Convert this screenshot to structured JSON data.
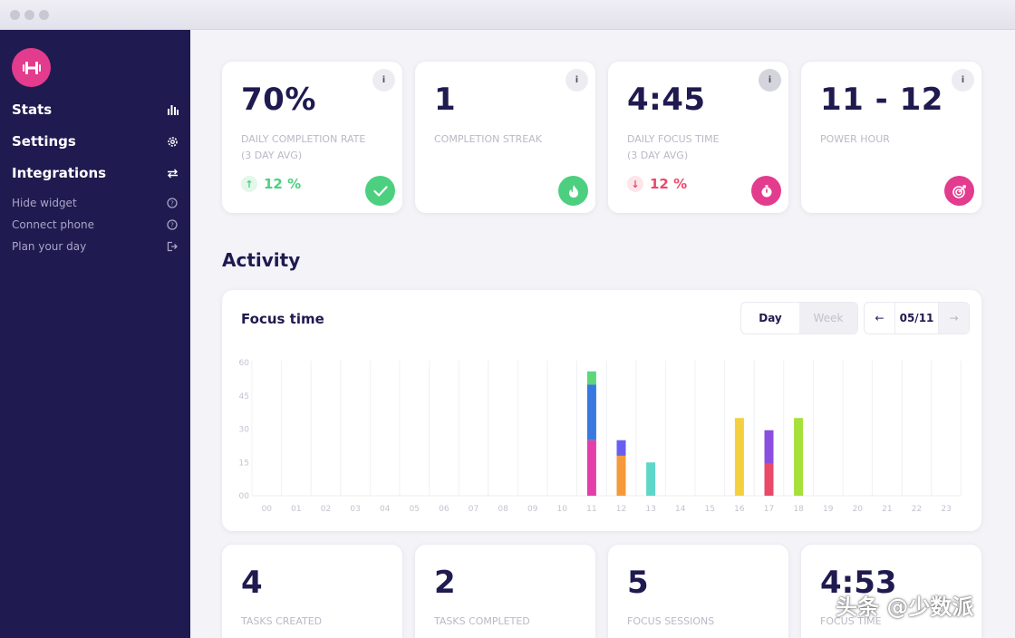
{
  "sidebar": {
    "logo_icon": "dumbbell-icon",
    "main_items": [
      {
        "label": "Stats",
        "icon": "bar-chart-icon"
      },
      {
        "label": "Settings",
        "icon": "gear-icon"
      },
      {
        "label": "Integrations",
        "icon": "sync-arrows-icon"
      }
    ],
    "sub_items": [
      {
        "label": "Hide widget",
        "icon": "help-circle-icon"
      },
      {
        "label": "Connect phone",
        "icon": "help-circle-icon"
      },
      {
        "label": "Plan your day",
        "icon": "exit-icon"
      }
    ]
  },
  "stats": [
    {
      "value": "70%",
      "label": "DAILY COMPLETION RATE\n(3 DAY AVG)",
      "delta": "12 %",
      "delta_direction": "up",
      "badge_icon": "check-icon",
      "badge_color": "#4cd080"
    },
    {
      "value": "1",
      "label": "COMPLETION STREAK",
      "badge_icon": "flame-icon",
      "badge_color": "#4cd080"
    },
    {
      "value": "4:45",
      "label": "DAILY FOCUS TIME\n(3 DAY AVG)",
      "delta": "12 %",
      "delta_direction": "down",
      "badge_icon": "stopwatch-icon",
      "badge_color": "#e33b8d"
    },
    {
      "value": "11 - 12",
      "label": "POWER HOUR",
      "badge_icon": "target-icon",
      "badge_color": "#e33b8d"
    }
  ],
  "activity": {
    "title": "Activity",
    "chart_card": {
      "title": "Focus time",
      "tabs": [
        "Day",
        "Week"
      ],
      "active_tab": "Day",
      "date": "05/11",
      "prev_icon": "arrow-left-icon",
      "next_icon": "arrow-right-icon"
    }
  },
  "chart_data": {
    "type": "bar",
    "stacked": true,
    "title": "Focus time",
    "xlabel": "",
    "ylabel": "",
    "categories": [
      "00",
      "01",
      "02",
      "03",
      "04",
      "05",
      "06",
      "07",
      "08",
      "09",
      "10",
      "11",
      "12",
      "13",
      "14",
      "15",
      "16",
      "17",
      "18",
      "19",
      "20",
      "21",
      "22",
      "23"
    ],
    "y_ticks": [
      "60",
      "45",
      "30",
      "15",
      "00"
    ],
    "ylim": [
      0,
      60
    ],
    "grid": true,
    "bars": [
      {
        "hour": "11",
        "segments": [
          {
            "value": 25,
            "color": "#e53ea9"
          },
          {
            "value": 25,
            "color": "#3a78e0"
          },
          {
            "value": 6,
            "color": "#5ed67b"
          }
        ]
      },
      {
        "hour": "12",
        "segments": [
          {
            "value": 18,
            "color": "#f59a3a"
          },
          {
            "value": 7,
            "color": "#6a5ef0"
          }
        ]
      },
      {
        "hour": "13",
        "segments": [
          {
            "value": 15,
            "color": "#5ed6c9"
          }
        ]
      },
      {
        "hour": "16",
        "segments": [
          {
            "value": 35,
            "color": "#f5d03e"
          }
        ]
      },
      {
        "hour": "17",
        "segments": [
          {
            "value": 14.5,
            "color": "#e94a6a"
          },
          {
            "value": 15,
            "color": "#8b4fe0"
          }
        ]
      },
      {
        "hour": "18",
        "segments": [
          {
            "value": 35,
            "color": "#a6e03a"
          }
        ]
      }
    ]
  },
  "bottom_stats": [
    {
      "value": "4",
      "label": "TASKS CREATED"
    },
    {
      "value": "2",
      "label": "TASKS COMPLETED"
    },
    {
      "value": "5",
      "label": "FOCUS SESSIONS"
    },
    {
      "value": "4:53",
      "label": "FOCUS TIME"
    }
  ],
  "watermark": "头条 @少数派",
  "colors": {
    "sidebar_bg": "#1f1a4f",
    "accent_pink": "#e33b8d",
    "accent_green": "#4cd080",
    "positive": "#4cd080",
    "negative": "#e94a6a"
  }
}
